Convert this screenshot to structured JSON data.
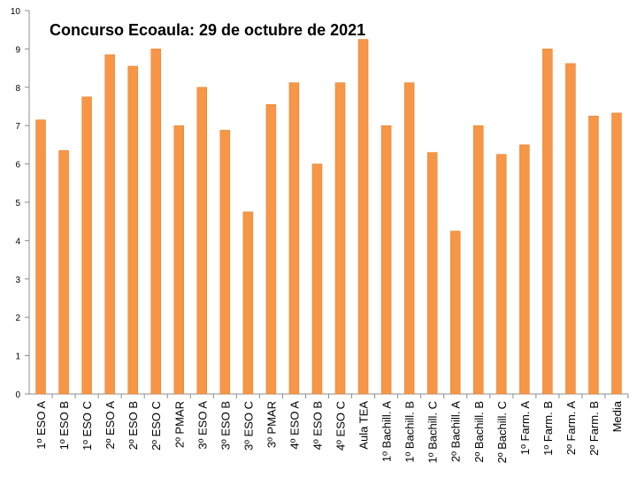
{
  "chart_data": {
    "type": "bar",
    "title": "Concurso Ecoaula: 29 de octubre de 2021",
    "xlabel": "",
    "ylabel": "",
    "ylim": [
      0,
      10
    ],
    "yticks": [
      "0",
      "1",
      "2",
      "3",
      "4",
      "5",
      "6",
      "7",
      "8",
      "9",
      "10"
    ],
    "grid": false,
    "legend": "none",
    "bar_color": "#F79646",
    "bar_stroke": "#E07F2E",
    "categories": [
      "1º ESO A",
      "1º ESO B",
      "1º ESO C",
      "2º ESO A",
      "2º ESO B",
      "2º ESO C",
      "2º PMAR",
      "3º ESO A",
      "3º ESO B",
      "3º ESO C",
      "3º PMAR",
      "4º ESO A",
      "4º ESO B",
      "4º ESO C",
      "Aula TEA",
      "1º Bachill. A",
      "1º Bachill. B",
      "1º Bachill. C",
      "2º Bachill. A",
      "2º Bachill. B",
      "2º Bachill. C",
      "1º Farm. A",
      "1º Farm. B",
      "2º Farm. A",
      "2º Farm. B",
      "Media"
    ],
    "values": [
      7.15,
      6.35,
      7.75,
      8.85,
      8.55,
      9.0,
      7.0,
      8.0,
      6.88,
      4.75,
      7.55,
      8.12,
      6.0,
      8.12,
      9.25,
      7.0,
      8.12,
      6.3,
      4.25,
      7.0,
      6.25,
      6.5,
      9.0,
      8.62,
      7.25,
      7.33
    ]
  }
}
